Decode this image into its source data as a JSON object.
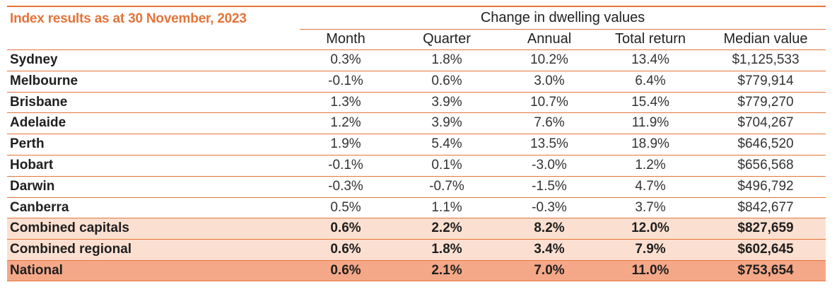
{
  "title": "Index results as at 30 November, 2023",
  "group_header": "Change in dwelling values",
  "columns": [
    "Month",
    "Quarter",
    "Annual",
    "Total return",
    "Median value"
  ],
  "rows": [
    {
      "name": "Sydney",
      "month": "0.3%",
      "quarter": "1.8%",
      "annual": "10.2%",
      "total": "13.4%",
      "median": "$1,125,533"
    },
    {
      "name": "Melbourne",
      "month": "-0.1%",
      "quarter": "0.6%",
      "annual": "3.0%",
      "total": "6.4%",
      "median": "$779,914"
    },
    {
      "name": "Brisbane",
      "month": "1.3%",
      "quarter": "3.9%",
      "annual": "10.7%",
      "total": "15.4%",
      "median": "$779,270"
    },
    {
      "name": "Adelaide",
      "month": "1.2%",
      "quarter": "3.9%",
      "annual": "7.6%",
      "total": "11.9%",
      "median": "$704,267"
    },
    {
      "name": "Perth",
      "month": "1.9%",
      "quarter": "5.4%",
      "annual": "13.5%",
      "total": "18.9%",
      "median": "$646,520"
    },
    {
      "name": "Hobart",
      "month": "-0.1%",
      "quarter": "0.1%",
      "annual": "-3.0%",
      "total": "1.2%",
      "median": "$656,568"
    },
    {
      "name": "Darwin",
      "month": "-0.3%",
      "quarter": "-0.7%",
      "annual": "-1.5%",
      "total": "4.7%",
      "median": "$496,792"
    },
    {
      "name": "Canberra",
      "month": "0.5%",
      "quarter": "1.1%",
      "annual": "-0.3%",
      "total": "3.7%",
      "median": "$842,677"
    },
    {
      "name": "Combined capitals",
      "month": "0.6%",
      "quarter": "2.2%",
      "annual": "8.2%",
      "total": "12.0%",
      "median": "$827,659"
    },
    {
      "name": "Combined regional",
      "month": "0.6%",
      "quarter": "1.8%",
      "annual": "3.4%",
      "total": "7.9%",
      "median": "$602,645"
    },
    {
      "name": "National",
      "month": "0.6%",
      "quarter": "2.1%",
      "annual": "7.0%",
      "total": "11.0%",
      "median": "$753,654"
    }
  ],
  "colors": {
    "accent": "#e3743a",
    "summary_bg": "#fbe0d1",
    "national_bg": "#f5a888"
  }
}
